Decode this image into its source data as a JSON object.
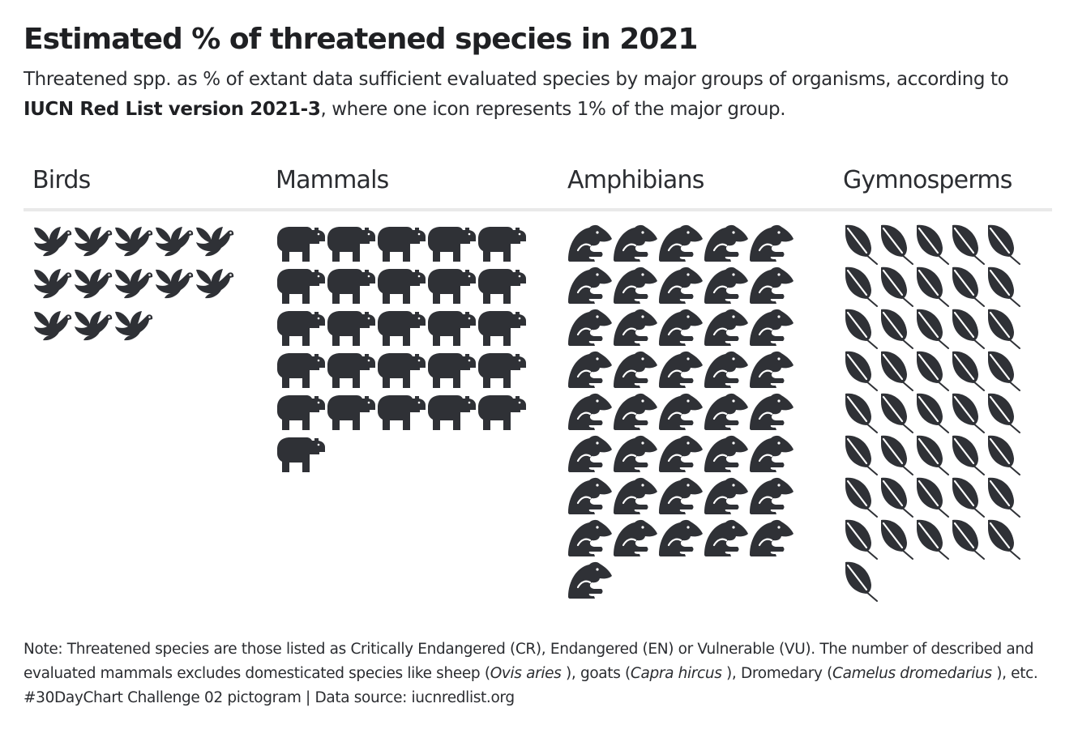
{
  "title": "Estimated % of threatened species in 2021",
  "subtitle": {
    "text_1": "Threatened spp. as % of extant data sufficient evaluated species by major groups of organisms, according to",
    "bold_source": "IUCN Red List version 2021-3",
    "text_2": ", where one icon represents 1% of the major group."
  },
  "note": {
    "line_1": "Note: Threatened species are those listed as Critically Endangered (CR), Endangered (EN) or Vulnerable (VU). The number of described and",
    "line_2a": "evaluated mammals excludes domesticated species like sheep (",
    "sheep_latin": "Ovis aries",
    "line_2b": " ), goats (",
    "goat_latin": "Capra hircus",
    "line_2c": " ), Dromedary (",
    "dromedary_latin": "Camelus dromedarius",
    "line_2d": " ), etc.",
    "credit": "#30DayChart Challenge 02 pictogram | Data source: iucnredlist.org"
  },
  "colors": {
    "icon": "#2f3136",
    "divider": "#e9e9e9",
    "text": "#2b2d31"
  },
  "chart_data": {
    "type": "pictogram",
    "unit": "1 icon = 1% of the major group",
    "icons_per_row": 5,
    "categories": [
      "Birds",
      "Mammals",
      "Amphibians",
      "Gymnosperms"
    ],
    "values": [
      13,
      26,
      41,
      41
    ],
    "icons": [
      "bird-icon",
      "hippo-icon",
      "frog-icon",
      "leaf-icon"
    ]
  }
}
